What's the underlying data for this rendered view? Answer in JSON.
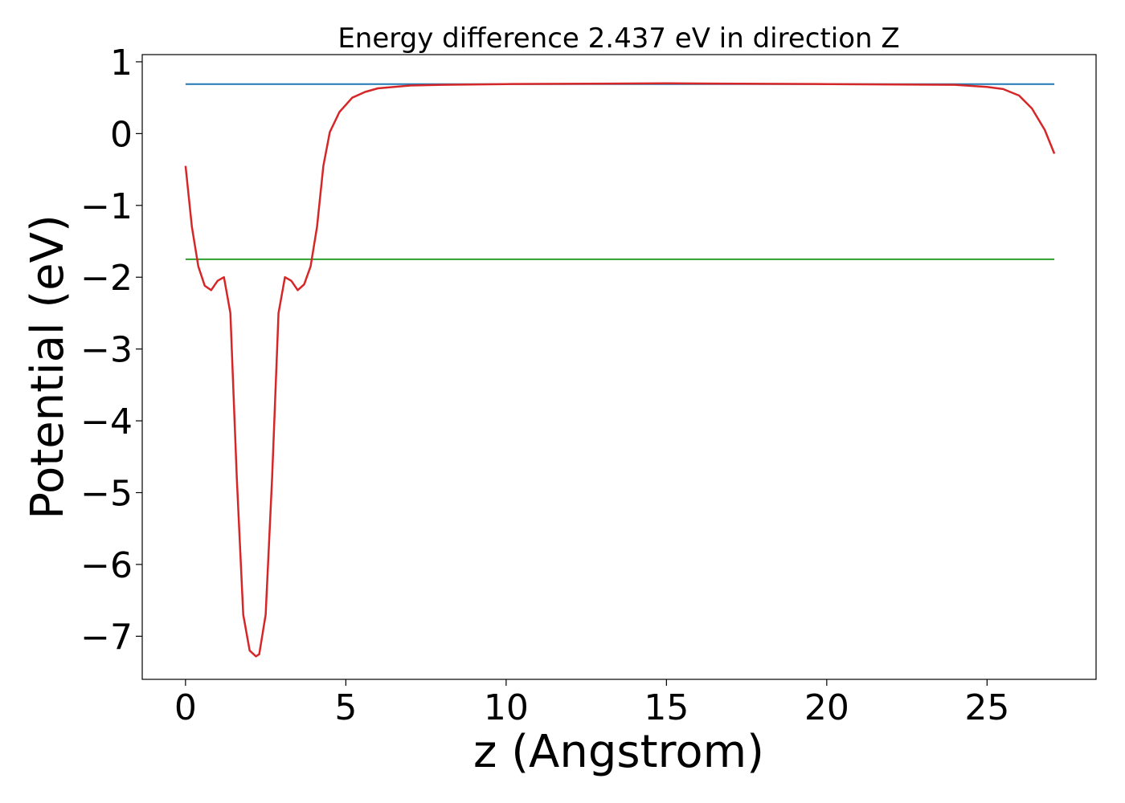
{
  "chart_data": {
    "type": "line",
    "title": "Energy difference 2.437 eV in direction Z",
    "xlabel": "z (Angstrom)",
    "ylabel": "Potential (eV)",
    "xlim": [
      -1.35,
      28.4
    ],
    "ylim": [
      -7.6,
      1.1
    ],
    "xticks": [
      0,
      5,
      10,
      15,
      20,
      25
    ],
    "yticks": [
      1,
      0,
      -1,
      -2,
      -3,
      -4,
      -5,
      -6,
      -7
    ],
    "ytick_labels": [
      "1",
      "0",
      "−1",
      "−2",
      "−3",
      "−4",
      "−5",
      "−6",
      "−7"
    ],
    "grid": false,
    "series": [
      {
        "color": "#1f77b4",
        "x": [
          0,
          27.1
        ],
        "y": [
          0.69,
          0.69
        ]
      },
      {
        "color": "#2ca02c",
        "x": [
          0,
          27.1
        ],
        "y": [
          -1.75,
          -1.75
        ]
      },
      {
        "color": "#d62728",
        "x": [
          0,
          0.2,
          0.4,
          0.6,
          0.8,
          1.0,
          1.2,
          1.4,
          1.6,
          1.8,
          2.0,
          2.2,
          2.3,
          2.5,
          2.7,
          2.9,
          3.1,
          3.3,
          3.5,
          3.7,
          3.9,
          4.1,
          4.3,
          4.5,
          4.8,
          5.2,
          5.6,
          6.0,
          7.0,
          8.0,
          10.0,
          15.0,
          20.0,
          24.0,
          25.0,
          25.5,
          26.0,
          26.4,
          26.8,
          27.1
        ],
        "y": [
          -0.45,
          -1.3,
          -1.85,
          -2.12,
          -2.18,
          -2.05,
          -2.0,
          -2.5,
          -4.8,
          -6.7,
          -7.2,
          -7.28,
          -7.25,
          -6.7,
          -4.8,
          -2.5,
          -2.0,
          -2.05,
          -2.18,
          -2.1,
          -1.85,
          -1.3,
          -0.45,
          0.02,
          0.3,
          0.5,
          0.58,
          0.63,
          0.67,
          0.68,
          0.69,
          0.7,
          0.69,
          0.68,
          0.65,
          0.62,
          0.53,
          0.35,
          0.05,
          -0.28
        ]
      }
    ]
  }
}
